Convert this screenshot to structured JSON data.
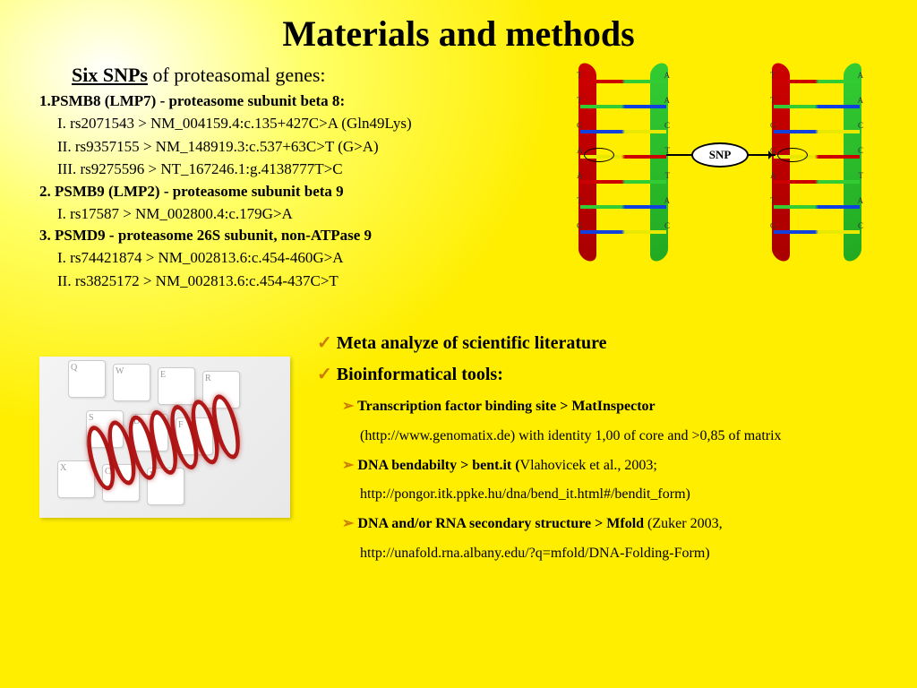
{
  "title": "Materials and methods",
  "background": {
    "gradient_center": "#ffffff",
    "gradient_mid": "#ffff66",
    "gradient_outer": "#ffee00"
  },
  "snp_section": {
    "heading_bold": "Six SNPs",
    "heading_rest": " of proteasomal genes:",
    "genes": [
      {
        "num": "1.",
        "title": "PSMB8 (LMP7) - proteasome subunit beta 8",
        "colon": ":",
        "items": [
          {
            "roman": "I.",
            "text": "rs2071543 > NM_004159.4:c.135+427C>A (Gln49Lys)"
          },
          {
            "roman": "II.",
            "text": "rs9357155 > NM_148919.3:c.537+63C>T (G>A)"
          },
          {
            "roman": "III.",
            "text": "rs9275596 > NT_167246.1:g.4138777T>C"
          }
        ]
      },
      {
        "num": "2.",
        "title": " PSMB9 (LMP2) - proteasome subunit beta 9",
        "colon": "",
        "items": [
          {
            "roman": "I.",
            "text": "rs17587 >  NM_002800.4:c.179G>A"
          }
        ]
      },
      {
        "num": "3.",
        "title": " PSMD9 - proteasome 26S subunit, non-ATPase 9",
        "colon": "",
        "items": [
          {
            "roman": "I.",
            "text": "rs74421874 > NM_002813.6:c.454-460G>A"
          },
          {
            "roman": "II.",
            "text": "rs3825172 > NM_002813.6:c.454-437C>T"
          }
        ]
      }
    ]
  },
  "snp_diagram": {
    "label": "SNP",
    "strand_colors": {
      "red": "#cc0000",
      "green": "#33cc33",
      "blue": "#1040dd",
      "yellow": "#e8e800"
    },
    "base_pairs_left": [
      "T A",
      "T A",
      "G C",
      "A T",
      "A T",
      "T A",
      "G C"
    ],
    "base_pairs_right": [
      "T A",
      "T A",
      "G C",
      "G C",
      "A T",
      "T A",
      "G C"
    ]
  },
  "keyboard_image": {
    "keys": [
      "Q",
      "W",
      "E",
      "R",
      "S",
      "D",
      "F",
      "X",
      "C",
      "V"
    ],
    "dna_color": "#b01818"
  },
  "tools": {
    "line1": "Meta analyze of scientific literature",
    "line2": "Bioinformatical tools:",
    "items": [
      {
        "bold": "Transcription factor binding site > MatInspector",
        "rest1": "(http://www.genomatix.de) with identity 1,00 of core and >0,85 of matrix"
      },
      {
        "bold": "DNA bendabilty > bent.it (",
        "rest_inline": "Vlahovicek et al., 2003;",
        "rest1": "http://pongor.itk.ppke.hu/dna/bend_it.html#/bendit_form)"
      },
      {
        "lead_space": " ",
        "bold": "DNA and/or RNA secondary structure > Mfold",
        "rest_inline": " (Zuker 2003,",
        "rest1": "http://unafold.rna.albany.edu/?q=mfold/DNA-Folding-Form)"
      }
    ],
    "bullet_color": "#cc7a00"
  },
  "typography": {
    "title_fontsize_pt": 30,
    "heading_fontsize_pt": 17,
    "body_fontsize_pt": 13,
    "tool_head_fontsize_pt": 15,
    "font_family": "Times New Roman"
  }
}
